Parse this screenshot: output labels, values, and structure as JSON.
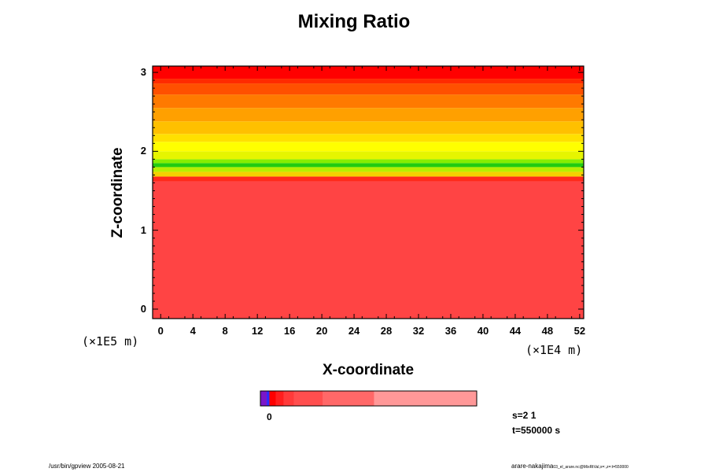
{
  "chart_data": {
    "type": "heatmap",
    "title": "Mixing Ratio",
    "xlabel": "X-coordinate",
    "ylabel": "Z-coordinate",
    "x_unit": "(×1E4 m)",
    "y_unit": "(×1E5 m)",
    "xlim": [
      -1,
      52.5
    ],
    "ylim": [
      -0.12,
      3.08
    ],
    "x_ticks": [
      "0",
      "4",
      "8",
      "12",
      "16",
      "20",
      "24",
      "28",
      "32",
      "36",
      "40",
      "44",
      "48",
      "52"
    ],
    "y_ticks": [
      "0",
      "1",
      "2",
      "3"
    ],
    "bands": [
      {
        "z_from": -0.12,
        "z_to": 1.62,
        "color": "#ff4444"
      },
      {
        "z_from": 1.62,
        "z_to": 1.68,
        "color": "#ff2a1a"
      },
      {
        "z_from": 1.68,
        "z_to": 1.74,
        "color": "#f5d000"
      },
      {
        "z_from": 1.74,
        "z_to": 1.8,
        "color": "#b8ee00"
      },
      {
        "z_from": 1.8,
        "z_to": 1.85,
        "color": "#22cc11"
      },
      {
        "z_from": 1.85,
        "z_to": 1.9,
        "color": "#88ee00"
      },
      {
        "z_from": 1.9,
        "z_to": 2.0,
        "color": "#e6f500"
      },
      {
        "z_from": 2.0,
        "z_to": 2.12,
        "color": "#ffff00"
      },
      {
        "z_from": 2.12,
        "z_to": 2.22,
        "color": "#ffe000"
      },
      {
        "z_from": 2.22,
        "z_to": 2.38,
        "color": "#ffc000"
      },
      {
        "z_from": 2.38,
        "z_to": 2.55,
        "color": "#ffa000"
      },
      {
        "z_from": 2.55,
        "z_to": 2.72,
        "color": "#ff7a00"
      },
      {
        "z_from": 2.72,
        "z_to": 2.86,
        "color": "#ff5000"
      },
      {
        "z_from": 2.86,
        "z_to": 2.92,
        "color": "#ff2a00"
      },
      {
        "z_from": 2.92,
        "z_to": 3.08,
        "color": "#ff0000"
      }
    ],
    "colorbar": {
      "label": "0",
      "segments": [
        {
          "weight": 1,
          "color": "#7a16c8"
        },
        {
          "weight": 0.4,
          "color": "#2a2aff"
        },
        {
          "weight": 1,
          "color": "#ff0000"
        },
        {
          "weight": 1.2,
          "color": "#ff1e1e"
        },
        {
          "weight": 1.6,
          "color": "#ff3a3a"
        },
        {
          "weight": 4.5,
          "color": "#ff4e4e"
        },
        {
          "weight": 8,
          "color": "#ff6868"
        },
        {
          "weight": 16,
          "color": "#ff9898"
        }
      ]
    }
  },
  "info": {
    "s_label": "s=2 1",
    "t_label": "t=550000 s"
  },
  "footer": {
    "left": "/usr/bin/gpview 2005-08-21",
    "right_main": "arare-nakajima",
    "right_small": "03_el_arare.nc@MixRtVal,x=:,z=:t=550000"
  }
}
